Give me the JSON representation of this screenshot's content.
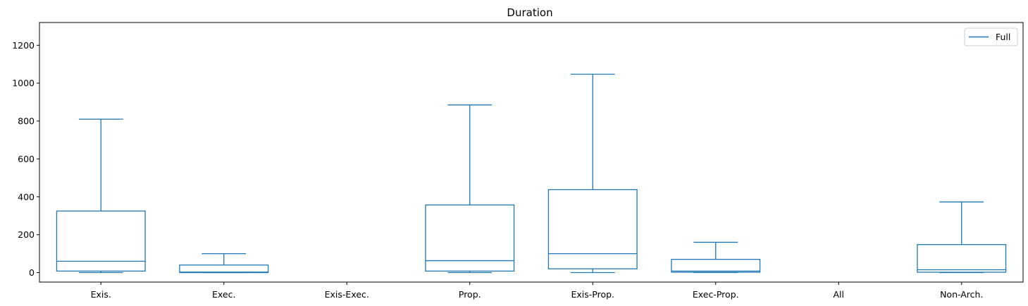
{
  "chart_data": {
    "type": "box",
    "title": "Duration",
    "xlabel": "",
    "ylabel": "",
    "ylim": [
      -50,
      1320
    ],
    "yticks": [
      0,
      200,
      400,
      600,
      800,
      1000,
      1200
    ],
    "categories": [
      "Exis.",
      "Exec.",
      "Exis-Exec.",
      "Prop.",
      "Exis-Prop.",
      "Exec-Prop.",
      "All",
      "Non-Arch."
    ],
    "series": [
      {
        "name": "Full",
        "color": "#1f77b4",
        "boxes": [
          {
            "category": "Exis.",
            "whislo": 0,
            "q1": 8,
            "med": 60,
            "q3": 325,
            "whishi": 810
          },
          {
            "category": "Exec.",
            "whislo": 0,
            "q1": 0,
            "med": 3,
            "q3": 40,
            "whishi": 100
          },
          null,
          {
            "category": "Prop.",
            "whislo": 0,
            "q1": 8,
            "med": 63,
            "q3": 357,
            "whishi": 885
          },
          {
            "category": "Exis-Prop.",
            "whislo": 0,
            "q1": 20,
            "med": 100,
            "q3": 438,
            "whishi": 1047
          },
          {
            "category": "Exec-Prop.",
            "whislo": 0,
            "q1": 2,
            "med": 8,
            "q3": 70,
            "whishi": 160
          },
          null,
          {
            "category": "Non-Arch.",
            "whislo": 0,
            "q1": 2,
            "med": 15,
            "q3": 148,
            "whishi": 373
          }
        ]
      }
    ],
    "legend": {
      "position": "top-right",
      "entries": [
        "Full"
      ]
    }
  }
}
